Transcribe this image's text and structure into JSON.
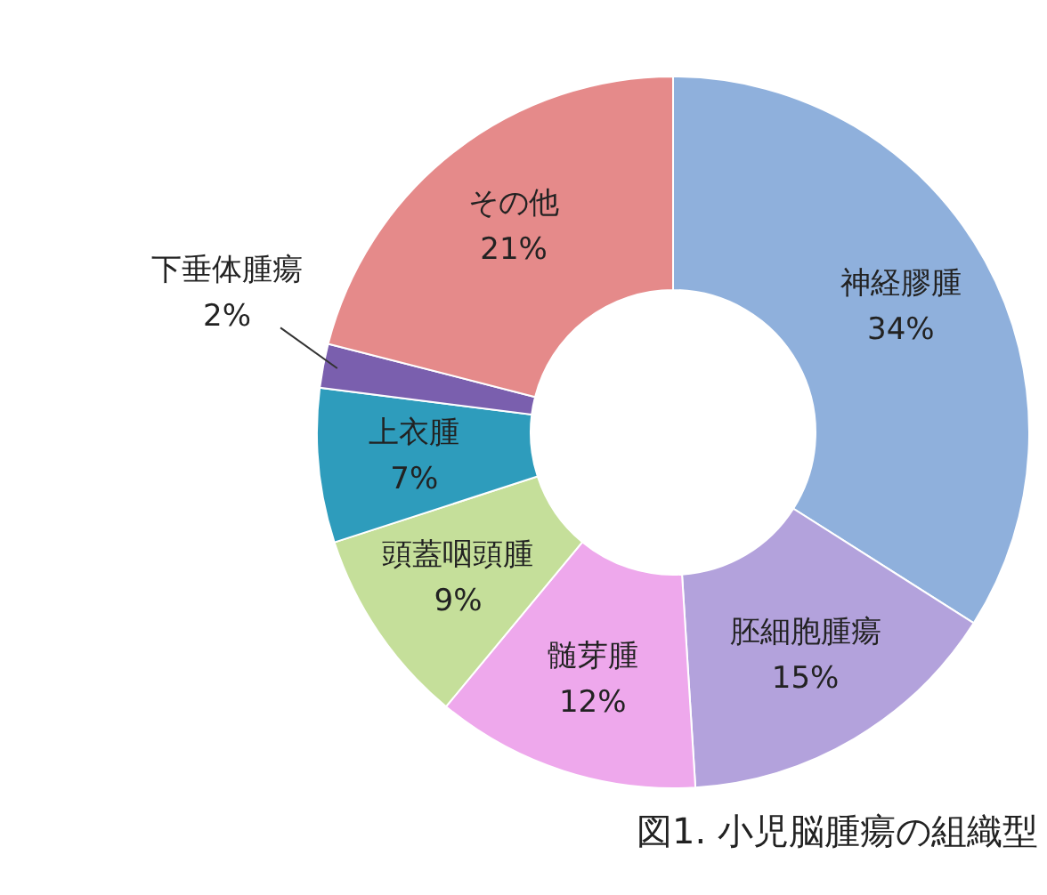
{
  "chart_data": {
    "type": "donut",
    "categories": [
      "神経膠腫",
      "胚細胞腫瘍",
      "髄芽腫",
      "頭蓋咽頭腫",
      "上衣腫",
      "下垂体腫瘍",
      "その他"
    ],
    "values": [
      34,
      15,
      12,
      9,
      7,
      2,
      21
    ],
    "value_labels": [
      "34%",
      "15%",
      "12%",
      "9%",
      "7%",
      "2%",
      "21%"
    ],
    "colors": [
      "#8fb0dc",
      "#b3a2dc",
      "#eea8ec",
      "#c5df9a",
      "#2e9cbc",
      "#7a5fae",
      "#e58a8a"
    ],
    "annotations": [
      "図1. 小児脳腫瘍の組織型"
    ],
    "legend": false
  }
}
